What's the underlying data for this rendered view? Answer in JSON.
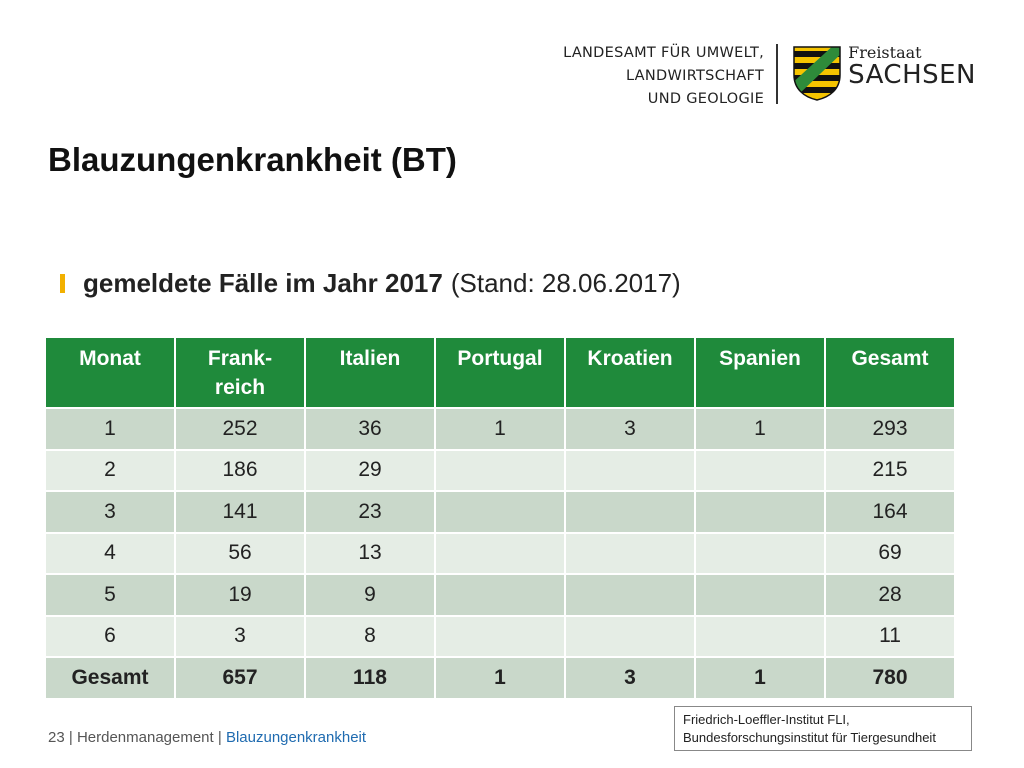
{
  "header": {
    "agency_lines": [
      "LANDESAMT FÜR UMWELT,",
      "LANDWIRTSCHAFT",
      "UND GEOLOGIE"
    ],
    "state_small": "Freistaat",
    "state_big": "SACHSEN",
    "crest_colors": {
      "yellow": "#f5c400",
      "black": "#111111",
      "green": "#2e8b3a"
    }
  },
  "title": "Blauzungenkrankheit (BT)",
  "bullet": {
    "bold": "gemeldete Fälle im Jahr 2017",
    "normal": "(Stand: 28.06.2017)",
    "mark_color": "#f2b000"
  },
  "table": {
    "header_color": "#1f8a3b",
    "headers": [
      "Monat",
      "Frank-\nreich",
      "Italien",
      "Portugal",
      "Kroatien",
      "Spanien",
      "Gesamt"
    ],
    "rows": [
      [
        "1",
        "252",
        "36",
        "1",
        "3",
        "1",
        "293"
      ],
      [
        "2",
        "186",
        "29",
        "",
        "",
        "",
        "215"
      ],
      [
        "3",
        "141",
        "23",
        "",
        "",
        "",
        "164"
      ],
      [
        "4",
        "56",
        "13",
        "",
        "",
        "",
        "69"
      ],
      [
        "5",
        "19",
        "9",
        "",
        "",
        "",
        "28"
      ],
      [
        "6",
        "3",
        "8",
        "",
        "",
        "",
        "11"
      ]
    ],
    "total": [
      "Gesamt",
      "657",
      "118",
      "1",
      "3",
      "1",
      "780"
    ]
  },
  "footer": {
    "page": "23",
    "separator": "|",
    "section": "Herdenmanagement",
    "topic": "Blauzungenkrankheit"
  },
  "source_box": {
    "line1": "Friedrich-Loeffler-Institut FLI,",
    "line2": "Bundesforschungsinstitut für Tiergesundheit"
  }
}
